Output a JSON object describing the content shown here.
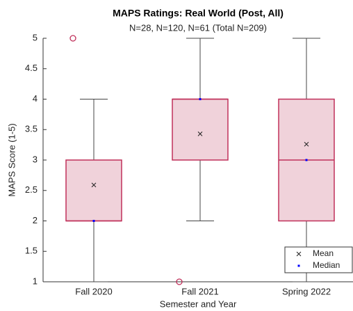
{
  "chart_data": {
    "type": "box",
    "title": "MAPS Ratings: Real World (Post, All)",
    "subtitle": "N=28, N=120, N=61 (Total N=209)",
    "x_label": "Semester and Year",
    "y_label": "MAPS Score (1-5)",
    "categories": [
      "Fall 2020",
      "Fall 2021",
      "Spring 2022"
    ],
    "boxes": [
      {
        "whisker_low": 1,
        "q1": 2,
        "median": 2,
        "q3": 3,
        "whisker_high": 4,
        "mean": 2.59,
        "outliers": [
          5
        ]
      },
      {
        "whisker_low": 2,
        "q1": 3,
        "median": 4,
        "q3": 4,
        "whisker_high": 5,
        "mean": 3.43,
        "outliers": [
          1
        ]
      },
      {
        "whisker_low": 1,
        "q1": 2,
        "median": 3,
        "q3": 4,
        "whisker_high": 5,
        "mean": 3.26,
        "outliers": []
      }
    ],
    "box_color": "#f0d2da",
    "edge_color": "#c0305a",
    "whisker_color": "#444444",
    "mean_color": "#222222",
    "median_color": "#0000ff",
    "ylim": [
      1,
      5
    ],
    "yticks": [
      1,
      1.5,
      2,
      2.5,
      3,
      3.5,
      4,
      4.5,
      5
    ],
    "legend": {
      "position": "lower right",
      "entries": [
        "Mean",
        "Median"
      ]
    }
  }
}
